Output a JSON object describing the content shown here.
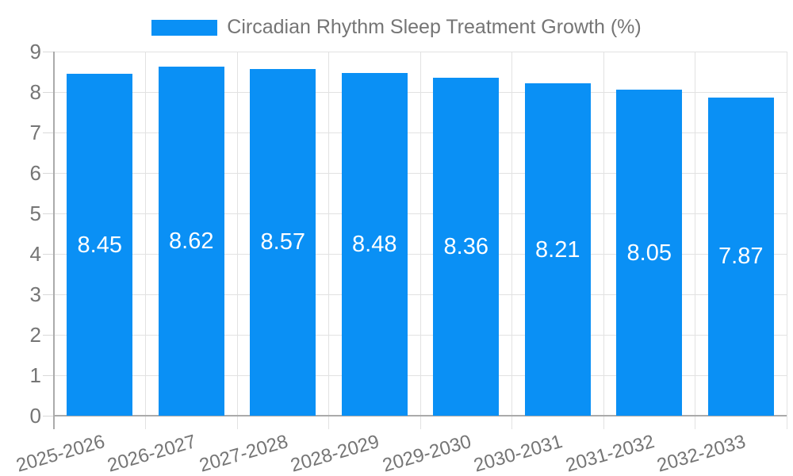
{
  "chart_data": {
    "type": "bar",
    "title": "Circadian Rhythm Sleep Treatment Growth (%)",
    "categories": [
      "2025-2026",
      "2026-2027",
      "2027-2028",
      "2028-2029",
      "2029-2030",
      "2030-2031",
      "2031-2032",
      "2032-2033"
    ],
    "values": [
      8.45,
      8.62,
      8.57,
      8.48,
      8.36,
      8.21,
      8.05,
      7.87
    ],
    "value_labels": [
      "8.45",
      "8.62",
      "8.57",
      "8.48",
      "8.36",
      "8.21",
      "8.05",
      "7.87"
    ],
    "xlabel": "",
    "ylabel": "",
    "ylim": [
      0,
      9
    ],
    "yticks": [
      0,
      1,
      2,
      3,
      4,
      5,
      6,
      7,
      8,
      9
    ],
    "grid": true,
    "legend_position": "top",
    "value_label_position": "inside-center"
  },
  "colors": {
    "bar": "#0a90f5",
    "grid": "#e2e2e2",
    "tick": "#d9d9d9",
    "axis": "#ababab",
    "text": "#757575",
    "value_text": "#ffffff",
    "background": "#ffffff"
  }
}
